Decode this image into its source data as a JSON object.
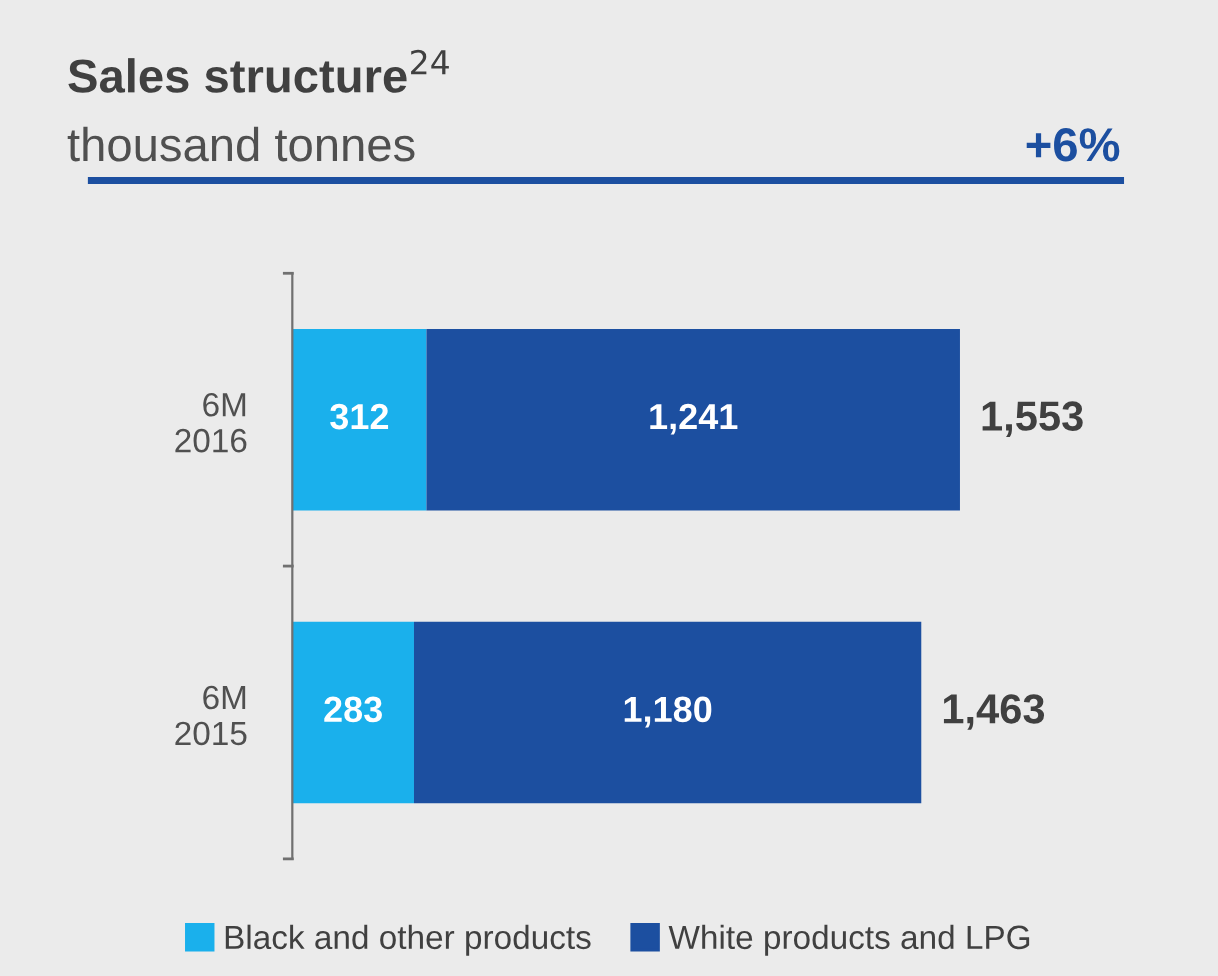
{
  "chart_data": {
    "type": "bar",
    "orientation": "horizontal",
    "stacked": true,
    "title": "Sales structure$^{24}$",
    "subtitle": "thousand tonnes",
    "annotations": [
      "+6%"
    ],
    "categories": [
      "6M\n2016",
      "6M\n2015"
    ],
    "series": [
      {
        "name": "Black and other products",
        "color": "#1ab0ec",
        "values": [
          312,
          283
        ],
        "value_labels": [
          "312",
          "283"
        ]
      },
      {
        "name": "White products and LPG",
        "color": "#1c4fa0",
        "values": [
          1241,
          1180
        ],
        "value_labels": [
          "1,241",
          "1,180"
        ]
      }
    ],
    "totals": [
      "1,553",
      "1,463"
    ],
    "legend": "bottom",
    "grid": false,
    "tick_labels": "y"
  }
}
